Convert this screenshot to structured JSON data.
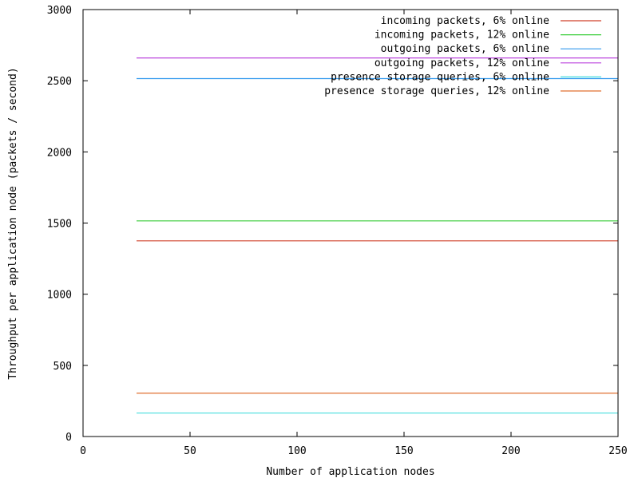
{
  "chart_data": {
    "type": "line",
    "title": "",
    "xlabel": "Number of application nodes",
    "ylabel": "Throughput per application node (packets / second)",
    "xlim": [
      0,
      250
    ],
    "ylim": [
      0,
      3000
    ],
    "xticks": [
      {
        "value": 0,
        "label": "0"
      },
      {
        "value": 50,
        "label": "50"
      },
      {
        "value": 100,
        "label": "100"
      },
      {
        "value": 150,
        "label": "150"
      },
      {
        "value": 200,
        "label": "200"
      },
      {
        "value": 250,
        "label": "250"
      }
    ],
    "yticks": [
      {
        "value": 0,
        "label": "0"
      },
      {
        "value": 500,
        "label": "500"
      },
      {
        "value": 1000,
        "label": "1000"
      },
      {
        "value": 1500,
        "label": "1500"
      },
      {
        "value": 2000,
        "label": "2000"
      },
      {
        "value": 2500,
        "label": "2500"
      },
      {
        "value": 3000,
        "label": "3000"
      }
    ],
    "grid": false,
    "legend_position": "top-right",
    "series": [
      {
        "name": "incoming packets, 6% online",
        "color": "#d0402a",
        "x": [
          25,
          250
        ],
        "y": [
          1375,
          1375
        ]
      },
      {
        "name": "incoming packets, 12% online",
        "color": "#33cc33",
        "x": [
          25,
          250
        ],
        "y": [
          1515,
          1515
        ]
      },
      {
        "name": "outgoing packets, 6% online",
        "color": "#3399ee",
        "x": [
          25,
          250
        ],
        "y": [
          2515,
          2515
        ]
      },
      {
        "name": "outgoing packets, 12% online",
        "color": "#bb44dd",
        "x": [
          25,
          250
        ],
        "y": [
          2660,
          2660
        ]
      },
      {
        "name": "presence storage queries, 6% online",
        "color": "#44dddd",
        "x": [
          25,
          250
        ],
        "y": [
          165,
          165
        ]
      },
      {
        "name": "presence storage queries, 12% online",
        "color": "#e07030",
        "x": [
          25,
          250
        ],
        "y": [
          305,
          305
        ]
      }
    ]
  }
}
